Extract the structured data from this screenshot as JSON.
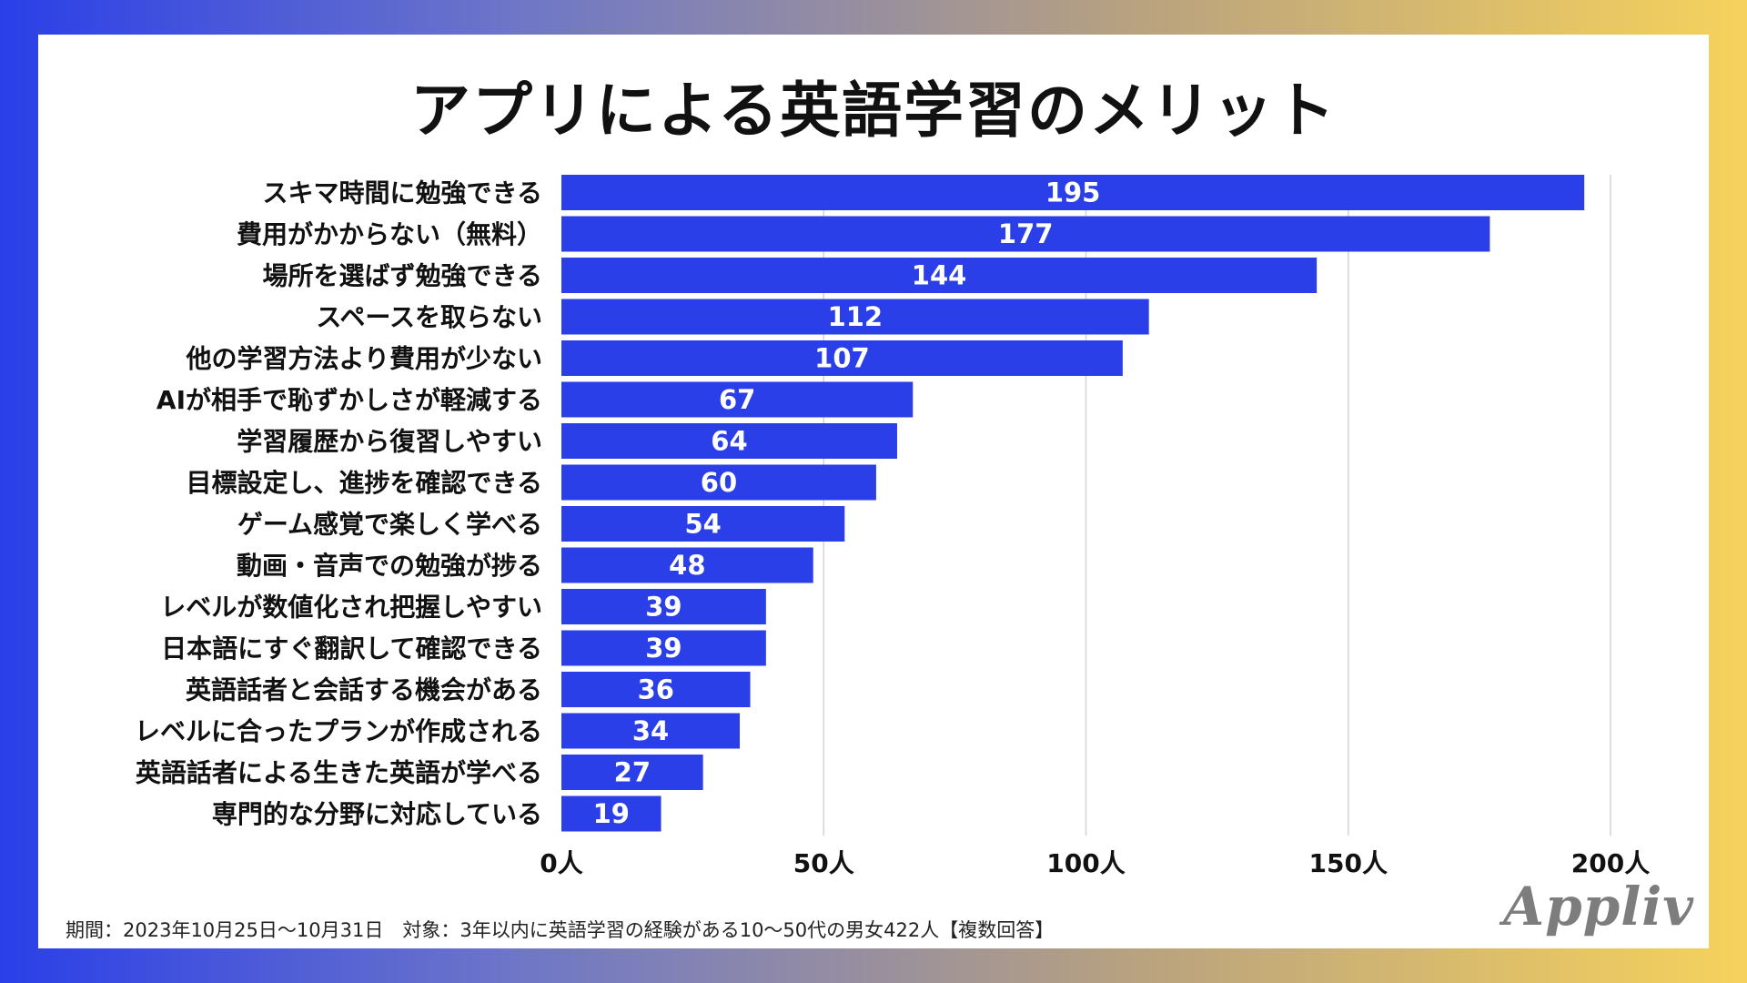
{
  "title": "アプリによる英語学習のメリット",
  "footer": {
    "period": "期間：2023年10月25日〜10月31日",
    "target": "対象：3年以内に英語学習の経験がある10〜50代の男女422人【複数回答】"
  },
  "logo": "Appliv",
  "colors": {
    "bar": "#2a3fe8",
    "grid": "#d4d4d4",
    "value_label": "#ffffff",
    "category_label": "#111111"
  },
  "chart_data": {
    "type": "bar",
    "orientation": "horizontal",
    "title": "アプリによる英語学習のメリット",
    "categories": [
      "スキマ時間に勉強できる",
      "費用がかからない（無料）",
      "場所を選ばず勉強できる",
      "スペースを取らない",
      "他の学習方法より費用が少ない",
      "AIが相手で恥ずかしさが軽減する",
      "学習履歴から復習しやすい",
      "目標設定し、進捗を確認できる",
      "ゲーム感覚で楽しく学べる",
      "動画・音声での勉強が捗る",
      "レベルが数値化され把握しやすい",
      "日本語にすぐ翻訳して確認できる",
      "英語話者と会話する機会がある",
      "レベルに合ったプランが作成される",
      "英語話者による生きた英語が学べる",
      "専門的な分野に対応している"
    ],
    "values": [
      195,
      177,
      144,
      112,
      107,
      67,
      64,
      60,
      54,
      48,
      39,
      39,
      36,
      34,
      27,
      19
    ],
    "xlim": [
      0,
      200
    ],
    "x_ticks": [
      0,
      50,
      100,
      150,
      200
    ],
    "x_tick_labels": [
      "0人",
      "50人",
      "100人",
      "150人",
      "200人"
    ],
    "grid": true,
    "legend": "none",
    "data_labels": true
  }
}
